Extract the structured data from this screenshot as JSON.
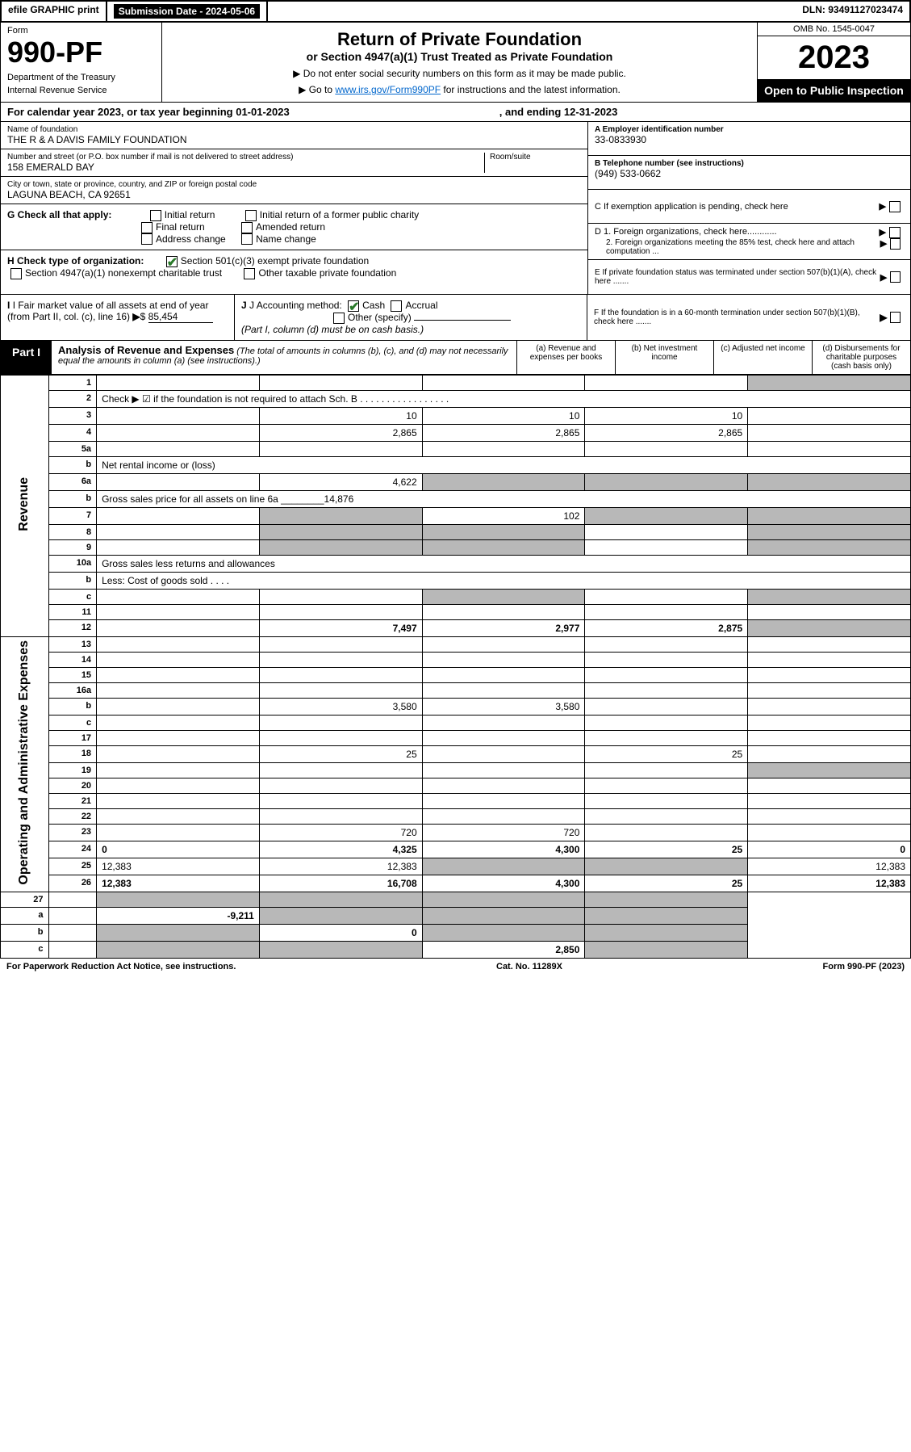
{
  "topbar": {
    "efile": "efile GRAPHIC print",
    "submission": "Submission Date - 2024-05-06",
    "dln": "DLN: 93491127023474"
  },
  "header": {
    "form_label": "Form",
    "form_num": "990-PF",
    "dept1": "Department of the Treasury",
    "dept2": "Internal Revenue Service",
    "title": "Return of Private Foundation",
    "subtitle": "or Section 4947(a)(1) Trust Treated as Private Foundation",
    "instr1": "▶ Do not enter social security numbers on this form as it may be made public.",
    "instr2": "▶ Go to ",
    "instr2_link": "www.irs.gov/Form990PF",
    "instr2_tail": " for instructions and the latest information.",
    "omb": "OMB No. 1545-0047",
    "year": "2023",
    "open": "Open to Public Inspection"
  },
  "cal": {
    "text": "For calendar year 2023, or tax year beginning 01-01-2023",
    "end": ", and ending 12-31-2023"
  },
  "info": {
    "name_lbl": "Name of foundation",
    "name_val": "THE R & A DAVIS FAMILY FOUNDATION",
    "addr_lbl": "Number and street (or P.O. box number if mail is not delivered to street address)",
    "addr_val": "158 EMERALD BAY",
    "room_lbl": "Room/suite",
    "city_lbl": "City or town, state or province, country, and ZIP or foreign postal code",
    "city_val": "LAGUNA BEACH, CA  92651",
    "a_lbl": "A Employer identification number",
    "a_val": "33-0833930",
    "b_lbl": "B Telephone number (see instructions)",
    "b_val": "(949) 533-0662",
    "c_lbl": "C If exemption application is pending, check here",
    "d1_lbl": "D 1. Foreign organizations, check here............",
    "d2_lbl": "2. Foreign organizations meeting the 85% test, check here and attach computation ...",
    "e_lbl": "E  If private foundation status was terminated under section 507(b)(1)(A), check here .......",
    "f_lbl": "F  If the foundation is in a 60-month termination under section 507(b)(1)(B), check here .......",
    "g_lbl": "G Check all that apply:",
    "g_opts": [
      "Initial return",
      "Initial return of a former public charity",
      "Final return",
      "Amended return",
      "Address change",
      "Name change"
    ],
    "h_lbl": "H Check type of organization:",
    "h_opt1": "Section 501(c)(3) exempt private foundation",
    "h_opt2": "Section 4947(a)(1) nonexempt charitable trust",
    "h_opt3": "Other taxable private foundation",
    "i_lbl": "I Fair market value of all assets at end of year (from Part II, col. (c), line 16)",
    "i_val": "85,454",
    "j_lbl": "J Accounting method:",
    "j_opt1": "Cash",
    "j_opt2": "Accrual",
    "j_opt3": "Other (specify)",
    "j_note": "(Part I, column (d) must be on cash basis.)"
  },
  "part1": {
    "label": "Part I",
    "title": "Analysis of Revenue and Expenses",
    "note": "(The total of amounts in columns (b), (c), and (d) may not necessarily equal the amounts in column (a) (see instructions).)",
    "colh": [
      "(a)   Revenue and expenses per books",
      "(b)   Net investment income",
      "(c)   Adjusted net income",
      "(d)  Disbursements for charitable purposes (cash basis only)"
    ]
  },
  "vlabels": {
    "rev": "Revenue",
    "exp": "Operating and Administrative Expenses"
  },
  "rows": [
    {
      "n": "1",
      "d": "",
      "a": "",
      "b": "",
      "c": "",
      "ds": true
    },
    {
      "n": "2",
      "d": "Check ▶ ☑ if the foundation is not required to attach Sch. B   . . . . . . . . . . . . . . . . .",
      "ar": true
    },
    {
      "n": "3",
      "d": "",
      "a": "10",
      "b": "10",
      "c": "10"
    },
    {
      "n": "4",
      "d": "",
      "a": "2,865",
      "b": "2,865",
      "c": "2,865"
    },
    {
      "n": "5a",
      "d": "",
      "a": "",
      "b": "",
      "c": ""
    },
    {
      "n": "b",
      "d": "Net rental income or (loss)  ",
      "ar": true,
      "line": true
    },
    {
      "n": "6a",
      "d": "",
      "a": "4,622",
      "b": "",
      "c": "",
      "bs": true,
      "cs": true,
      "ds": true
    },
    {
      "n": "b",
      "d": "Gross sales price for all assets on line 6a ________14,876",
      "ar": true
    },
    {
      "n": "7",
      "d": "",
      "a": "",
      "b": "102",
      "c": "",
      "as": true,
      "cs": true,
      "ds": true
    },
    {
      "n": "8",
      "d": "",
      "a": "",
      "b": "",
      "c": "",
      "as": true,
      "bs": true,
      "ds": true
    },
    {
      "n": "9",
      "d": "",
      "a": "",
      "b": "",
      "c": "",
      "as": true,
      "bs": true,
      "ds": true
    },
    {
      "n": "10a",
      "d": "Gross sales less returns and allowances",
      "ar": true,
      "line": true
    },
    {
      "n": "b",
      "d": "Less: Cost of goods sold  . . . .",
      "ar": true,
      "line": true
    },
    {
      "n": "c",
      "d": "",
      "a": "",
      "b": "",
      "c": "",
      "bs": true,
      "ds": true
    },
    {
      "n": "11",
      "d": "",
      "a": "",
      "b": "",
      "c": ""
    },
    {
      "n": "12",
      "d": "",
      "a": "7,497",
      "b": "2,977",
      "c": "2,875",
      "bold": true,
      "ds": true
    }
  ],
  "exp_rows": [
    {
      "n": "13",
      "d": "",
      "a": "",
      "b": "",
      "c": ""
    },
    {
      "n": "14",
      "d": "",
      "a": "",
      "b": "",
      "c": ""
    },
    {
      "n": "15",
      "d": "",
      "a": "",
      "b": "",
      "c": ""
    },
    {
      "n": "16a",
      "d": "",
      "a": "",
      "b": "",
      "c": ""
    },
    {
      "n": "b",
      "d": "",
      "a": "3,580",
      "b": "3,580",
      "c": ""
    },
    {
      "n": "c",
      "d": "",
      "a": "",
      "b": "",
      "c": ""
    },
    {
      "n": "17",
      "d": "",
      "a": "",
      "b": "",
      "c": ""
    },
    {
      "n": "18",
      "d": "",
      "a": "25",
      "b": "",
      "c": "25"
    },
    {
      "n": "19",
      "d": "",
      "a": "",
      "b": "",
      "c": "",
      "ds": true
    },
    {
      "n": "20",
      "d": "",
      "a": "",
      "b": "",
      "c": ""
    },
    {
      "n": "21",
      "d": "",
      "a": "",
      "b": "",
      "c": ""
    },
    {
      "n": "22",
      "d": "",
      "a": "",
      "b": "",
      "c": ""
    },
    {
      "n": "23",
      "d": "",
      "a": "720",
      "b": "720",
      "c": ""
    },
    {
      "n": "24",
      "d": "0",
      "a": "4,325",
      "b": "4,300",
      "c": "25",
      "bold": true
    },
    {
      "n": "25",
      "d": "12,383",
      "a": "12,383",
      "b": "",
      "c": "",
      "bs": true,
      "cs": true
    },
    {
      "n": "26",
      "d": "12,383",
      "a": "16,708",
      "b": "4,300",
      "c": "25",
      "bold": true
    }
  ],
  "tail_rows": [
    {
      "n": "27",
      "d": "",
      "a": "",
      "b": "",
      "c": "",
      "as": true,
      "bs": true,
      "cs": true,
      "ds": true
    },
    {
      "n": "a",
      "d": "",
      "a": "-9,211",
      "b": "",
      "c": "",
      "bold": true,
      "bs": true,
      "cs": true,
      "ds": true
    },
    {
      "n": "b",
      "d": "",
      "a": "",
      "b": "0",
      "c": "",
      "bold": true,
      "as": true,
      "cs": true,
      "ds": true
    },
    {
      "n": "c",
      "d": "",
      "a": "",
      "b": "",
      "c": "2,850",
      "bold": true,
      "as": true,
      "bs": true,
      "ds": true
    }
  ],
  "footer": {
    "l": "For Paperwork Reduction Act Notice, see instructions.",
    "c": "Cat. No. 11289X",
    "r": "Form 990-PF (2023)"
  }
}
